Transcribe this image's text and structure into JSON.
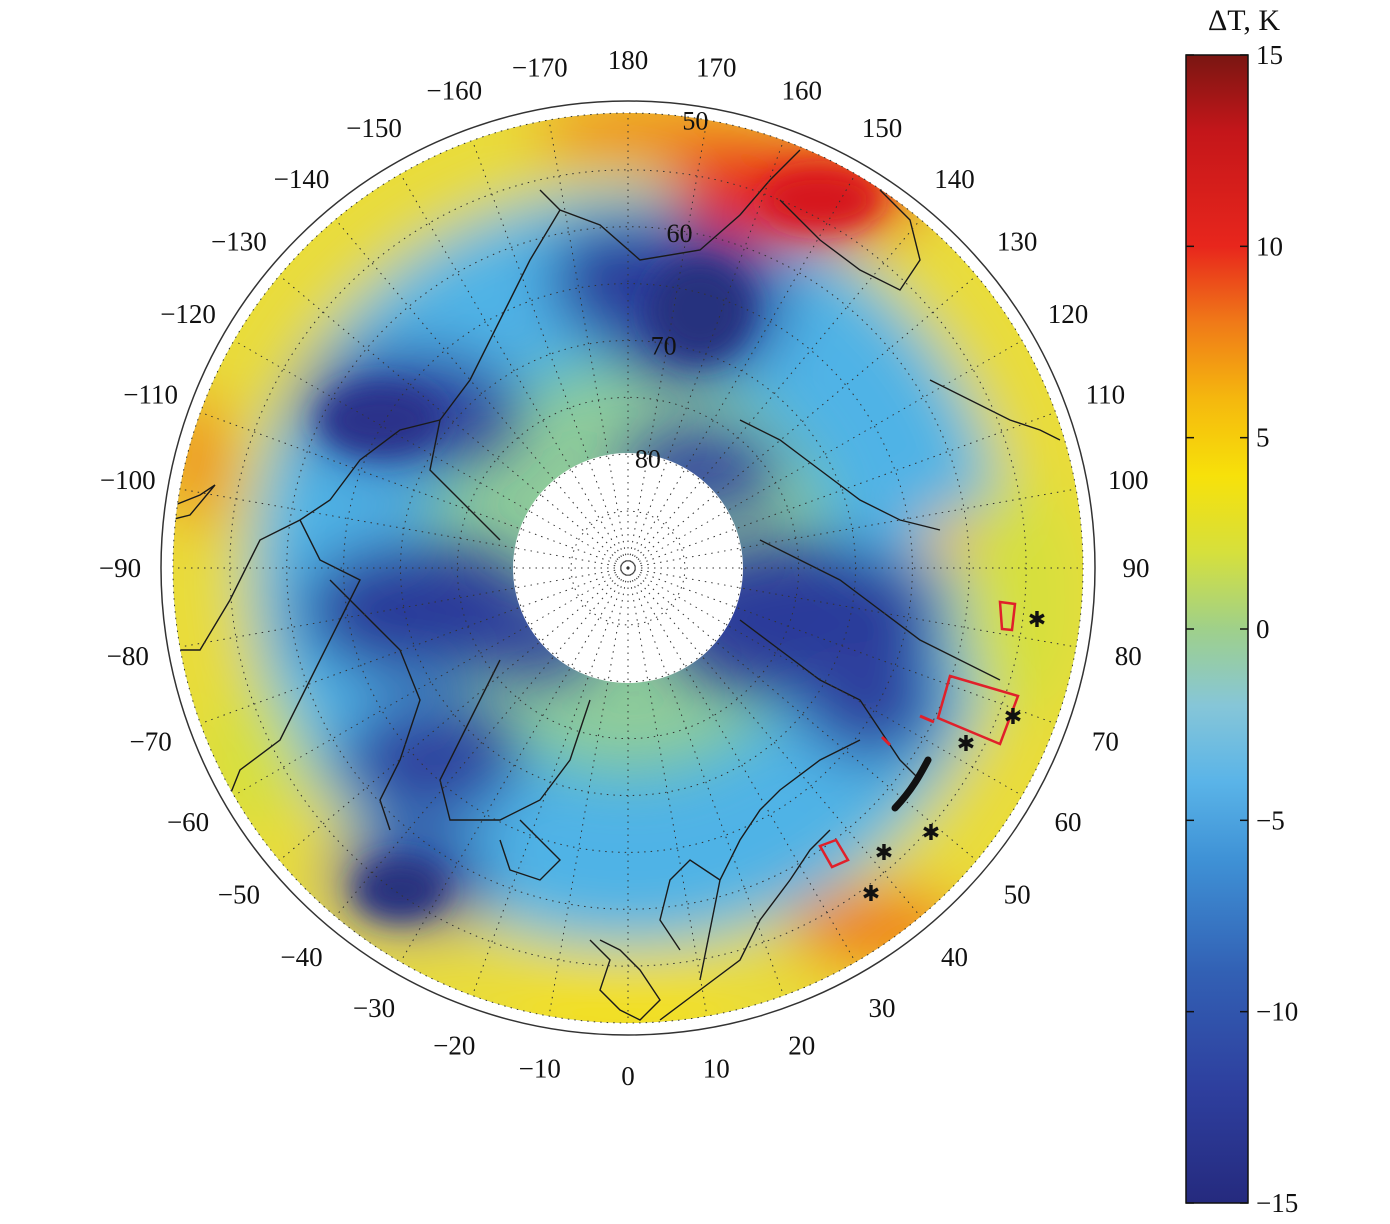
{
  "map": {
    "projection": "north polar stereographic",
    "lat_min": 50,
    "pole_mask_lat": 80,
    "longitude_labels": [
      "180",
      "170",
      "160",
      "150",
      "140",
      "130",
      "120",
      "110",
      "100",
      "90",
      "80",
      "70",
      "60",
      "50",
      "40",
      "30",
      "20",
      "10",
      "0",
      "−10",
      "−20",
      "−30",
      "−40",
      "−50",
      "−60",
      "−70",
      "−80",
      "−90",
      "−100",
      "−110",
      "−120",
      "−130",
      "−140",
      "−150",
      "−160",
      "−170"
    ],
    "longitude_values": [
      180,
      170,
      160,
      150,
      140,
      130,
      120,
      110,
      100,
      90,
      80,
      70,
      60,
      50,
      40,
      30,
      20,
      10,
      0,
      -10,
      -20,
      -30,
      -40,
      -50,
      -60,
      -70,
      -80,
      -90,
      -100,
      -110,
      -120,
      -130,
      -140,
      -150,
      -160,
      -170
    ],
    "latitude_labels": [
      "50",
      "60",
      "70",
      "80"
    ],
    "latitude_values": [
      50,
      60,
      70,
      80
    ],
    "graticule": "dotted",
    "coastlines": "black",
    "field_description_colors": {
      "cold_core": "#2b3a9a",
      "cool": "#4fb3e6",
      "neutral": "#c9e06a",
      "warm": "#f7e000",
      "hot": "#e8231b"
    },
    "markers": {
      "red_boxes": 3,
      "red_ticks": 2,
      "black_stars": 6,
      "black_track": 1,
      "red_color": "#e0202a",
      "black_color": "#111111"
    }
  },
  "colorbar": {
    "title": "ΔT, K",
    "min": -15,
    "max": 15,
    "ticks": [
      "15",
      "10",
      "5",
      "0",
      "−5",
      "−10",
      "−15"
    ],
    "tick_values": [
      15,
      10,
      5,
      0,
      -5,
      -10,
      -15
    ],
    "stops": [
      {
        "v": -15,
        "color": "#252a7e"
      },
      {
        "v": -12,
        "color": "#2e3f9e"
      },
      {
        "v": -9,
        "color": "#3260b4"
      },
      {
        "v": -6,
        "color": "#3f92d6"
      },
      {
        "v": -4,
        "color": "#5ab4e8"
      },
      {
        "v": -2,
        "color": "#86c6d8"
      },
      {
        "v": 0,
        "color": "#9fd08a"
      },
      {
        "v": 2,
        "color": "#d6e03c"
      },
      {
        "v": 4,
        "color": "#f7e10a"
      },
      {
        "v": 6,
        "color": "#f5b80e"
      },
      {
        "v": 8,
        "color": "#f07a18"
      },
      {
        "v": 10,
        "color": "#e8261c"
      },
      {
        "v": 13,
        "color": "#c4161a"
      },
      {
        "v": 15,
        "color": "#7a1612"
      }
    ]
  }
}
